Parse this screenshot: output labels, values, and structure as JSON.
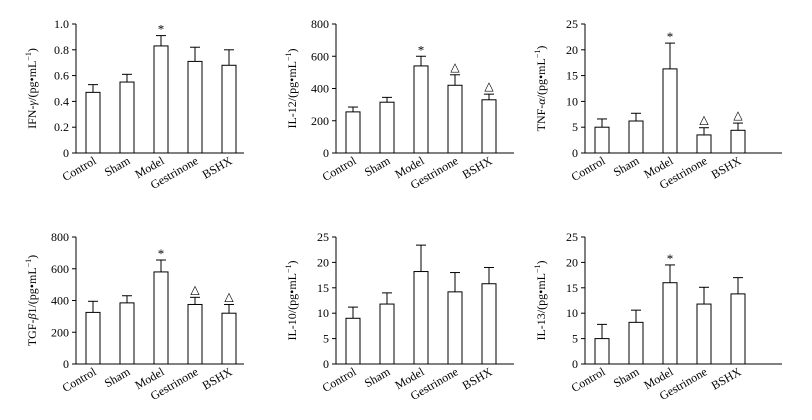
{
  "figure": {
    "background": "#ffffff",
    "bar_fill": "#ffffff",
    "ink": "#000000"
  },
  "chart_data": [
    {
      "type": "bar",
      "categories": [
        "Control",
        "Sham",
        "Model",
        "Gestrinone",
        "BSHX"
      ],
      "ylabel_prefix": "IFN-",
      "ylabel_greek": "γ",
      "ylabel_suffix": "/(pg•mL",
      "ylabel_sup": "−1",
      "ylabel_close": ")",
      "ylim": [
        0,
        1.0
      ],
      "ticks": [
        0,
        0.2,
        0.4,
        0.6,
        0.8,
        1.0
      ],
      "tick_labels": [
        "0",
        "0.2",
        "0.4",
        "0.6",
        "0.8",
        "1.0"
      ],
      "values": [
        0.47,
        0.55,
        0.83,
        0.71,
        0.68
      ],
      "errors": [
        0.06,
        0.06,
        0.08,
        0.11,
        0.12
      ],
      "markers": [
        "",
        "",
        "*",
        "",
        ""
      ]
    },
    {
      "type": "bar",
      "categories": [
        "Control",
        "Sham",
        "Model",
        "Gestrinone",
        "BSHX"
      ],
      "ylabel_prefix": "IL-12/(pg•mL",
      "ylabel_greek": "",
      "ylabel_suffix": "",
      "ylabel_sup": "−1",
      "ylabel_close": ")",
      "ylim": [
        0,
        800
      ],
      "ticks": [
        0,
        200,
        400,
        600,
        800
      ],
      "tick_labels": [
        "0",
        "200",
        "400",
        "600",
        "800"
      ],
      "values": [
        255,
        315,
        540,
        420,
        330
      ],
      "errors": [
        30,
        30,
        60,
        65,
        35
      ],
      "markers": [
        "",
        "",
        "*",
        "△",
        "△"
      ]
    },
    {
      "type": "bar",
      "categories": [
        "Control",
        "Sham",
        "Model",
        "Gestrinone",
        "BSHX"
      ],
      "ylabel_prefix": "TNF-",
      "ylabel_greek": "α",
      "ylabel_suffix": "/(pg•mL",
      "ylabel_sup": "−1",
      "ylabel_close": ")",
      "ylim": [
        0,
        25
      ],
      "ticks": [
        0,
        5,
        10,
        15,
        20,
        25
      ],
      "tick_labels": [
        "0",
        "5",
        "10",
        "15",
        "20",
        "25"
      ],
      "values": [
        5.0,
        6.2,
        16.3,
        3.5,
        4.4
      ],
      "errors": [
        1.6,
        1.5,
        5.0,
        1.4,
        1.4
      ],
      "markers": [
        "",
        "",
        "*",
        "△",
        "△"
      ]
    },
    {
      "type": "bar",
      "categories": [
        "Control",
        "Sham",
        "Model",
        "Gestrinone",
        "BSHX"
      ],
      "ylabel_prefix": "TGF-",
      "ylabel_greek": "β",
      "ylabel_suffix": "1/(pg•mL",
      "ylabel_sup": "−1",
      "ylabel_close": ")",
      "ylim": [
        0,
        800
      ],
      "ticks": [
        0,
        200,
        400,
        600,
        800
      ],
      "tick_labels": [
        "0",
        "200",
        "400",
        "600",
        "800"
      ],
      "values": [
        325,
        385,
        580,
        375,
        320
      ],
      "errors": [
        70,
        45,
        75,
        45,
        55
      ],
      "markers": [
        "",
        "",
        "*",
        "△",
        "△"
      ]
    },
    {
      "type": "bar",
      "categories": [
        "Control",
        "Sham",
        "Model",
        "Gestrinone",
        "BSHX"
      ],
      "ylabel_prefix": "IL-10/(pg•mL",
      "ylabel_greek": "",
      "ylabel_suffix": "",
      "ylabel_sup": "−1",
      "ylabel_close": ")",
      "ylim": [
        0,
        25
      ],
      "ticks": [
        0,
        5,
        10,
        15,
        20,
        25
      ],
      "tick_labels": [
        "0",
        "5",
        "10",
        "15",
        "20",
        "25"
      ],
      "values": [
        9.0,
        11.8,
        18.2,
        14.2,
        15.8
      ],
      "errors": [
        2.2,
        2.2,
        5.2,
        3.8,
        3.2
      ],
      "markers": [
        "",
        "",
        "",
        "",
        ""
      ]
    },
    {
      "type": "bar",
      "categories": [
        "Control",
        "Sham",
        "Model",
        "Gestrinone",
        "BSHX"
      ],
      "ylabel_prefix": "IL-13/(pg•mL",
      "ylabel_greek": "",
      "ylabel_suffix": "",
      "ylabel_sup": "−1",
      "ylabel_close": ")",
      "ylim": [
        0,
        25
      ],
      "ticks": [
        0,
        5,
        10,
        15,
        20,
        25
      ],
      "tick_labels": [
        "0",
        "5",
        "10",
        "15",
        "20",
        "25"
      ],
      "values": [
        5.0,
        8.2,
        16.0,
        11.8,
        13.8
      ],
      "errors": [
        2.8,
        2.4,
        3.5,
        3.3,
        3.2
      ],
      "markers": [
        "",
        "",
        "*",
        "",
        ""
      ]
    }
  ]
}
